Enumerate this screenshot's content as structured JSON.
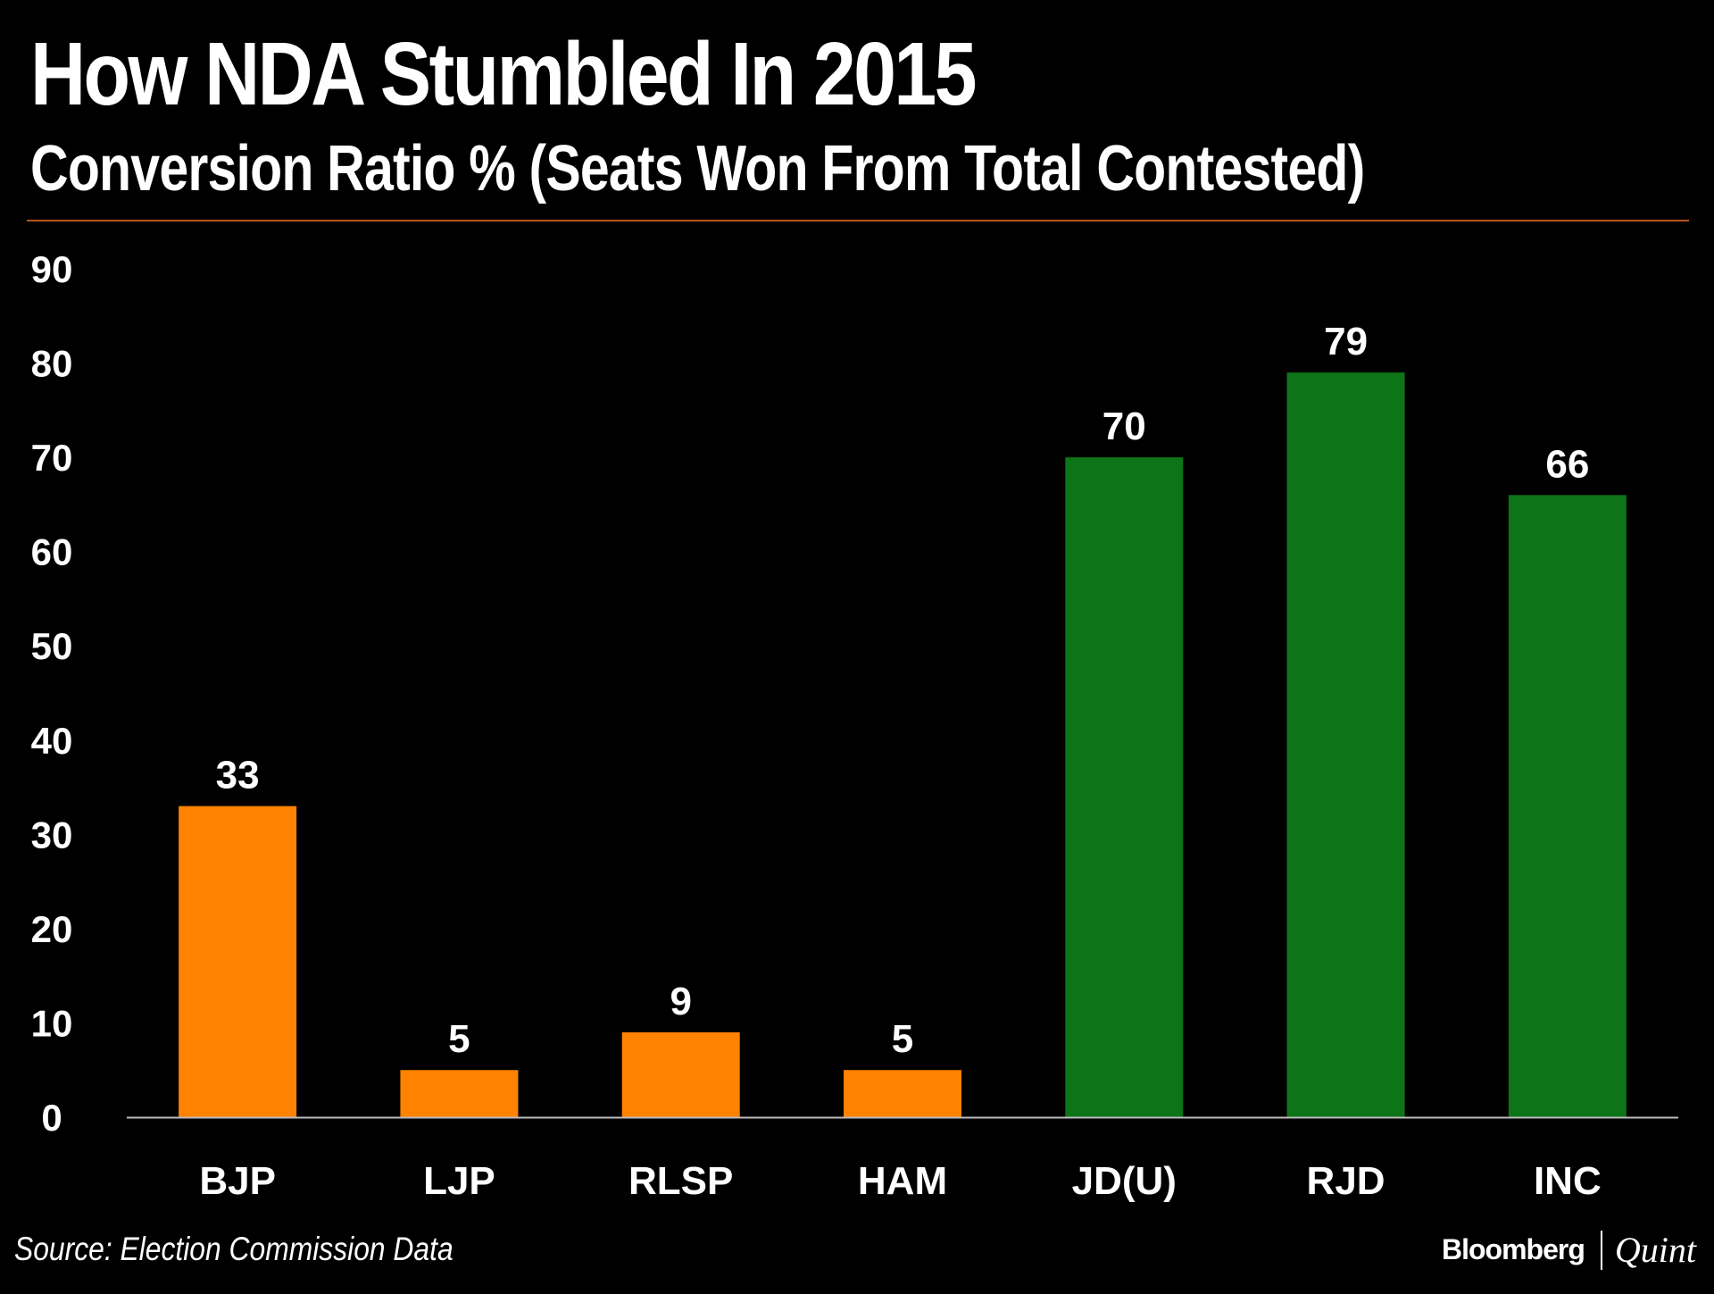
{
  "chart_data": {
    "type": "bar",
    "title": "How NDA Stumbled In 2015",
    "subtitle": "Conversion Ratio % (Seats Won From Total Contested)",
    "categories": [
      "BJP",
      "LJP",
      "RLSP",
      "HAM",
      "JD(U)",
      "RJD",
      "INC"
    ],
    "values": [
      33,
      5,
      9,
      5,
      70,
      79,
      66
    ],
    "bar_colors": [
      "#ff8200",
      "#ff8200",
      "#ff8200",
      "#ff8200",
      "#0d7418",
      "#0d7418",
      "#0d7418"
    ],
    "ylim": [
      0,
      90
    ],
    "yticks": [
      0,
      10,
      20,
      30,
      40,
      50,
      60,
      70,
      80,
      90
    ],
    "xlabel": "",
    "ylabel": "",
    "grid": false,
    "data_labels": true
  },
  "footer": {
    "source": "Source: Election Commission Data",
    "brand_primary": "Bloomberg",
    "brand_secondary": "Quint"
  },
  "colors": {
    "background": "#000000",
    "text": "#ffffff",
    "rule": "#b4561d",
    "axis": "#bbbbbb"
  }
}
